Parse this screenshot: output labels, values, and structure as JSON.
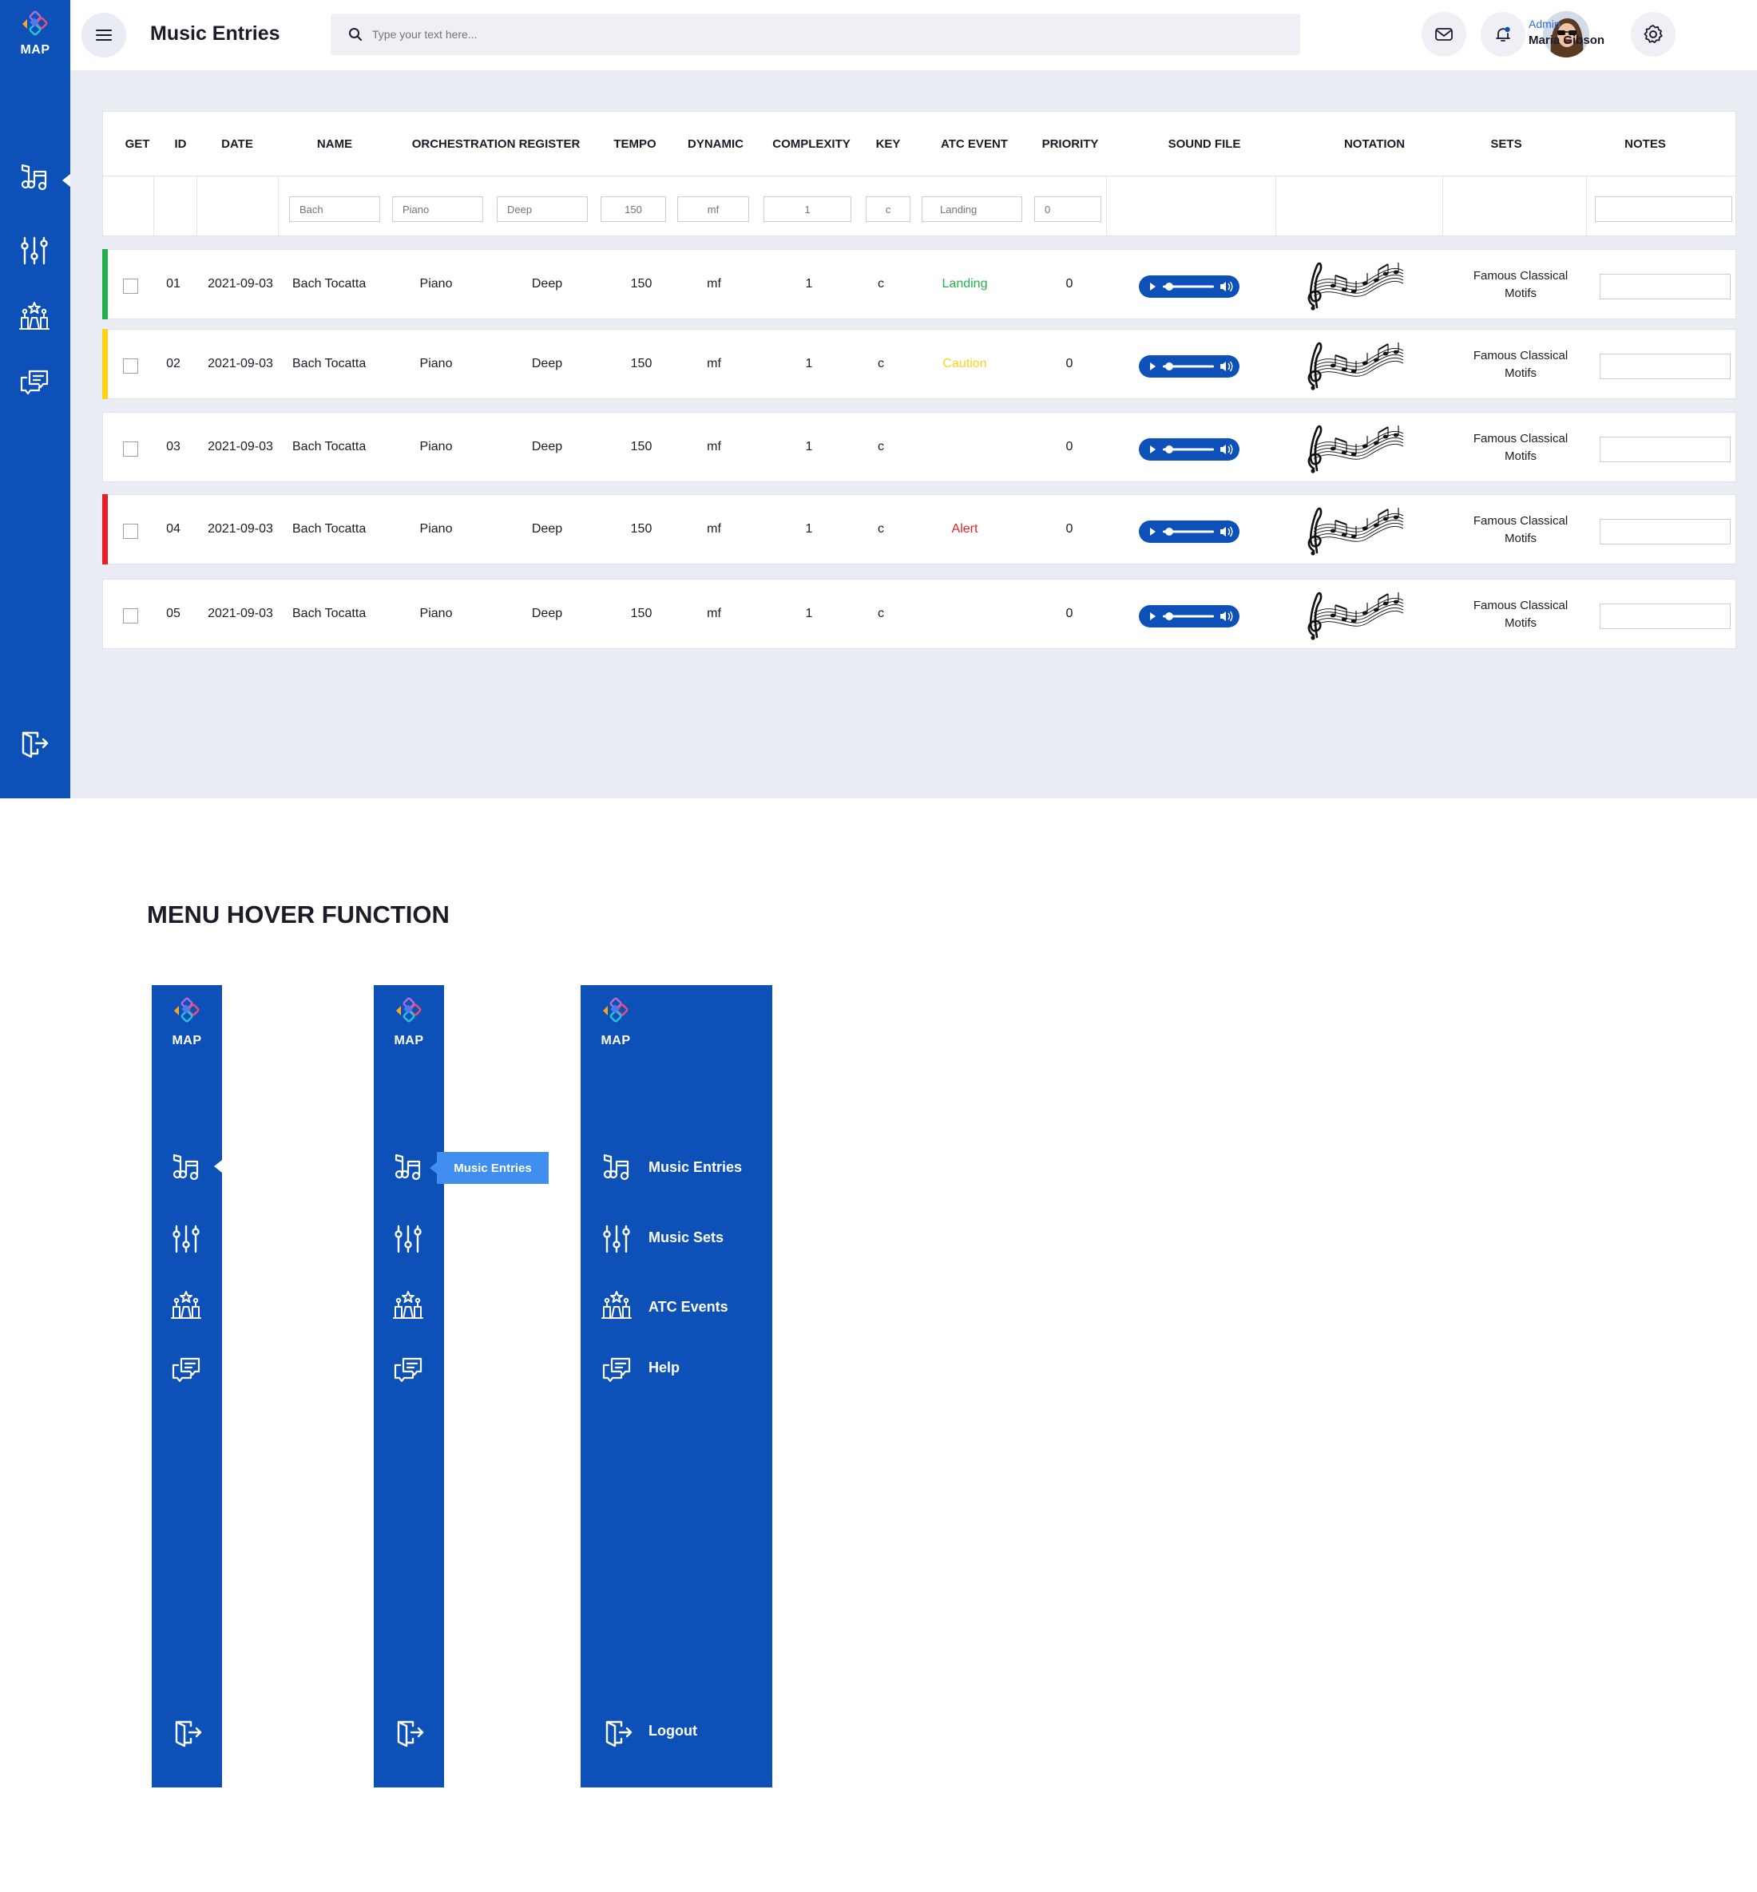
{
  "app": {
    "logo_text": "MAP",
    "page_title": "Music Entries",
    "search_placeholder": "Type your text here...",
    "user": {
      "role": "Admin",
      "name": "Maria Gibson"
    }
  },
  "nav": {
    "items": [
      {
        "label": "Music Entries",
        "icon": "music-notes-icon"
      },
      {
        "label": "Music Sets",
        "icon": "sliders-icon"
      },
      {
        "label": "ATC Events",
        "icon": "event-stage-icon"
      },
      {
        "label": "Help",
        "icon": "chat-bubbles-icon"
      }
    ],
    "logout_label": "Logout",
    "hover_tooltip": "Music Entries"
  },
  "table": {
    "columns": [
      "GET",
      "ID",
      "DATE",
      "NAME",
      "ORCHESTRATION REGISTER",
      "TEMPO",
      "DYNAMIC",
      "COMPLEXITY",
      "KEY",
      "ATC EVENT",
      "PRIORITY",
      "SOUND FILE",
      "NOTATION",
      "SETS",
      "NOTES"
    ],
    "filters": {
      "name": "Bach",
      "orchestration": "Piano",
      "register": "Deep",
      "tempo": "150",
      "dynamic": "mf",
      "complexity": "1",
      "key": "c",
      "atc_event": "Landing",
      "priority": "0",
      "notes": ""
    },
    "rows": [
      {
        "id": "01",
        "date": "2021-09-03",
        "name": "Bach Tocatta",
        "orchestration": "Piano",
        "register": "Deep",
        "tempo": "150",
        "dynamic": "mf",
        "complexity": "1",
        "key": "c",
        "atc_event": "Landing",
        "priority": "0",
        "sets_line1": "Famous Classical",
        "sets_line2": "Motifs",
        "status_color": "#22b04b"
      },
      {
        "id": "02",
        "date": "2021-09-03",
        "name": "Bach Tocatta",
        "orchestration": "Piano",
        "register": "Deep",
        "tempo": "150",
        "dynamic": "mf",
        "complexity": "1",
        "key": "c",
        "atc_event": "Caution",
        "priority": "0",
        "sets_line1": "Famous Classical",
        "sets_line2": "Motifs",
        "status_color": "#ffd21a"
      },
      {
        "id": "03",
        "date": "2021-09-03",
        "name": "Bach Tocatta",
        "orchestration": "Piano",
        "register": "Deep",
        "tempo": "150",
        "dynamic": "mf",
        "complexity": "1",
        "key": "c",
        "atc_event": "",
        "priority": "0",
        "sets_line1": "Famous Classical",
        "sets_line2": "Motifs",
        "status_color": ""
      },
      {
        "id": "04",
        "date": "2021-09-03",
        "name": "Bach Tocatta",
        "orchestration": "Piano",
        "register": "Deep",
        "tempo": "150",
        "dynamic": "mf",
        "complexity": "1",
        "key": "c",
        "atc_event": "Alert",
        "priority": "0",
        "sets_line1": "Famous Classical",
        "sets_line2": "Motifs",
        "status_color": "#ea1c24"
      },
      {
        "id": "05",
        "date": "2021-09-03",
        "name": "Bach Tocatta",
        "orchestration": "Piano",
        "register": "Deep",
        "tempo": "150",
        "dynamic": "mf",
        "complexity": "1",
        "key": "c",
        "atc_event": "",
        "priority": "0",
        "sets_line1": "Famous Classical",
        "sets_line2": "Motifs",
        "status_color": ""
      }
    ]
  },
  "hover_section": {
    "title": "MENU HOVER FUNCTION"
  },
  "colors": {
    "brand_blue": "#0d51b8",
    "tooltip_blue": "#3f8ef0",
    "landing": "#22b04b",
    "caution": "#ffd21a",
    "alert": "#ea1c24"
  }
}
